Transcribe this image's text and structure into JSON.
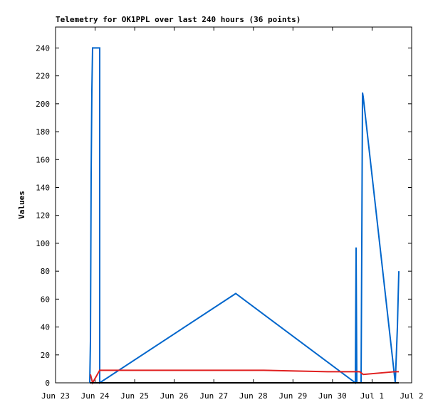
{
  "chart_data": {
    "type": "line",
    "title": "Telemetry for OK1PPL over last 240 hours (36 points)",
    "y_label": "Values",
    "series": [
      {
        "color": "#0066cc",
        "x": [
          0.864,
          0.882,
          0.891,
          0.9,
          0.918,
          0.936,
          1.116,
          1.116,
          4.554,
          7.578,
          7.596,
          7.614,
          7.722,
          7.74,
          7.758,
          7.776,
          8.586,
          8.64,
          8.676
        ],
        "values": [
          0,
          30,
          90,
          150,
          210,
          240,
          240,
          0,
          64,
          0,
          97,
          0,
          0,
          100,
          208,
          205,
          0,
          40,
          80
        ]
      },
      {
        "color": "#e02020",
        "x": [
          0.882,
          0.936,
          1.116,
          5.256,
          6.876,
          7.686,
          7.776,
          8.586,
          8.676
        ],
        "values": [
          6,
          0,
          9,
          9,
          8,
          8,
          6,
          8,
          8
        ]
      },
      {
        "color": "#000000",
        "x": [
          0.864,
          8.676
        ],
        "values": [
          0,
          0
        ]
      }
    ],
    "xlim": [
      0,
      9
    ],
    "xticks": [
      {
        "value": 0,
        "label": "Jun 23"
      },
      {
        "value": 1,
        "label": "Jun 24"
      },
      {
        "value": 2,
        "label": "Jun 25"
      },
      {
        "value": 3,
        "label": "Jun 26"
      },
      {
        "value": 4,
        "label": "Jun 27"
      },
      {
        "value": 5,
        "label": "Jun 28"
      },
      {
        "value": 6,
        "label": "Jun 29"
      },
      {
        "value": 7,
        "label": "Jun 30"
      },
      {
        "value": 8,
        "label": "Jul 1"
      },
      {
        "value": 9,
        "label": "Jul 2"
      }
    ],
    "ylim": [
      0,
      255
    ],
    "yticks": [
      0,
      20,
      40,
      60,
      80,
      100,
      120,
      140,
      160,
      180,
      200,
      220,
      240
    ]
  }
}
